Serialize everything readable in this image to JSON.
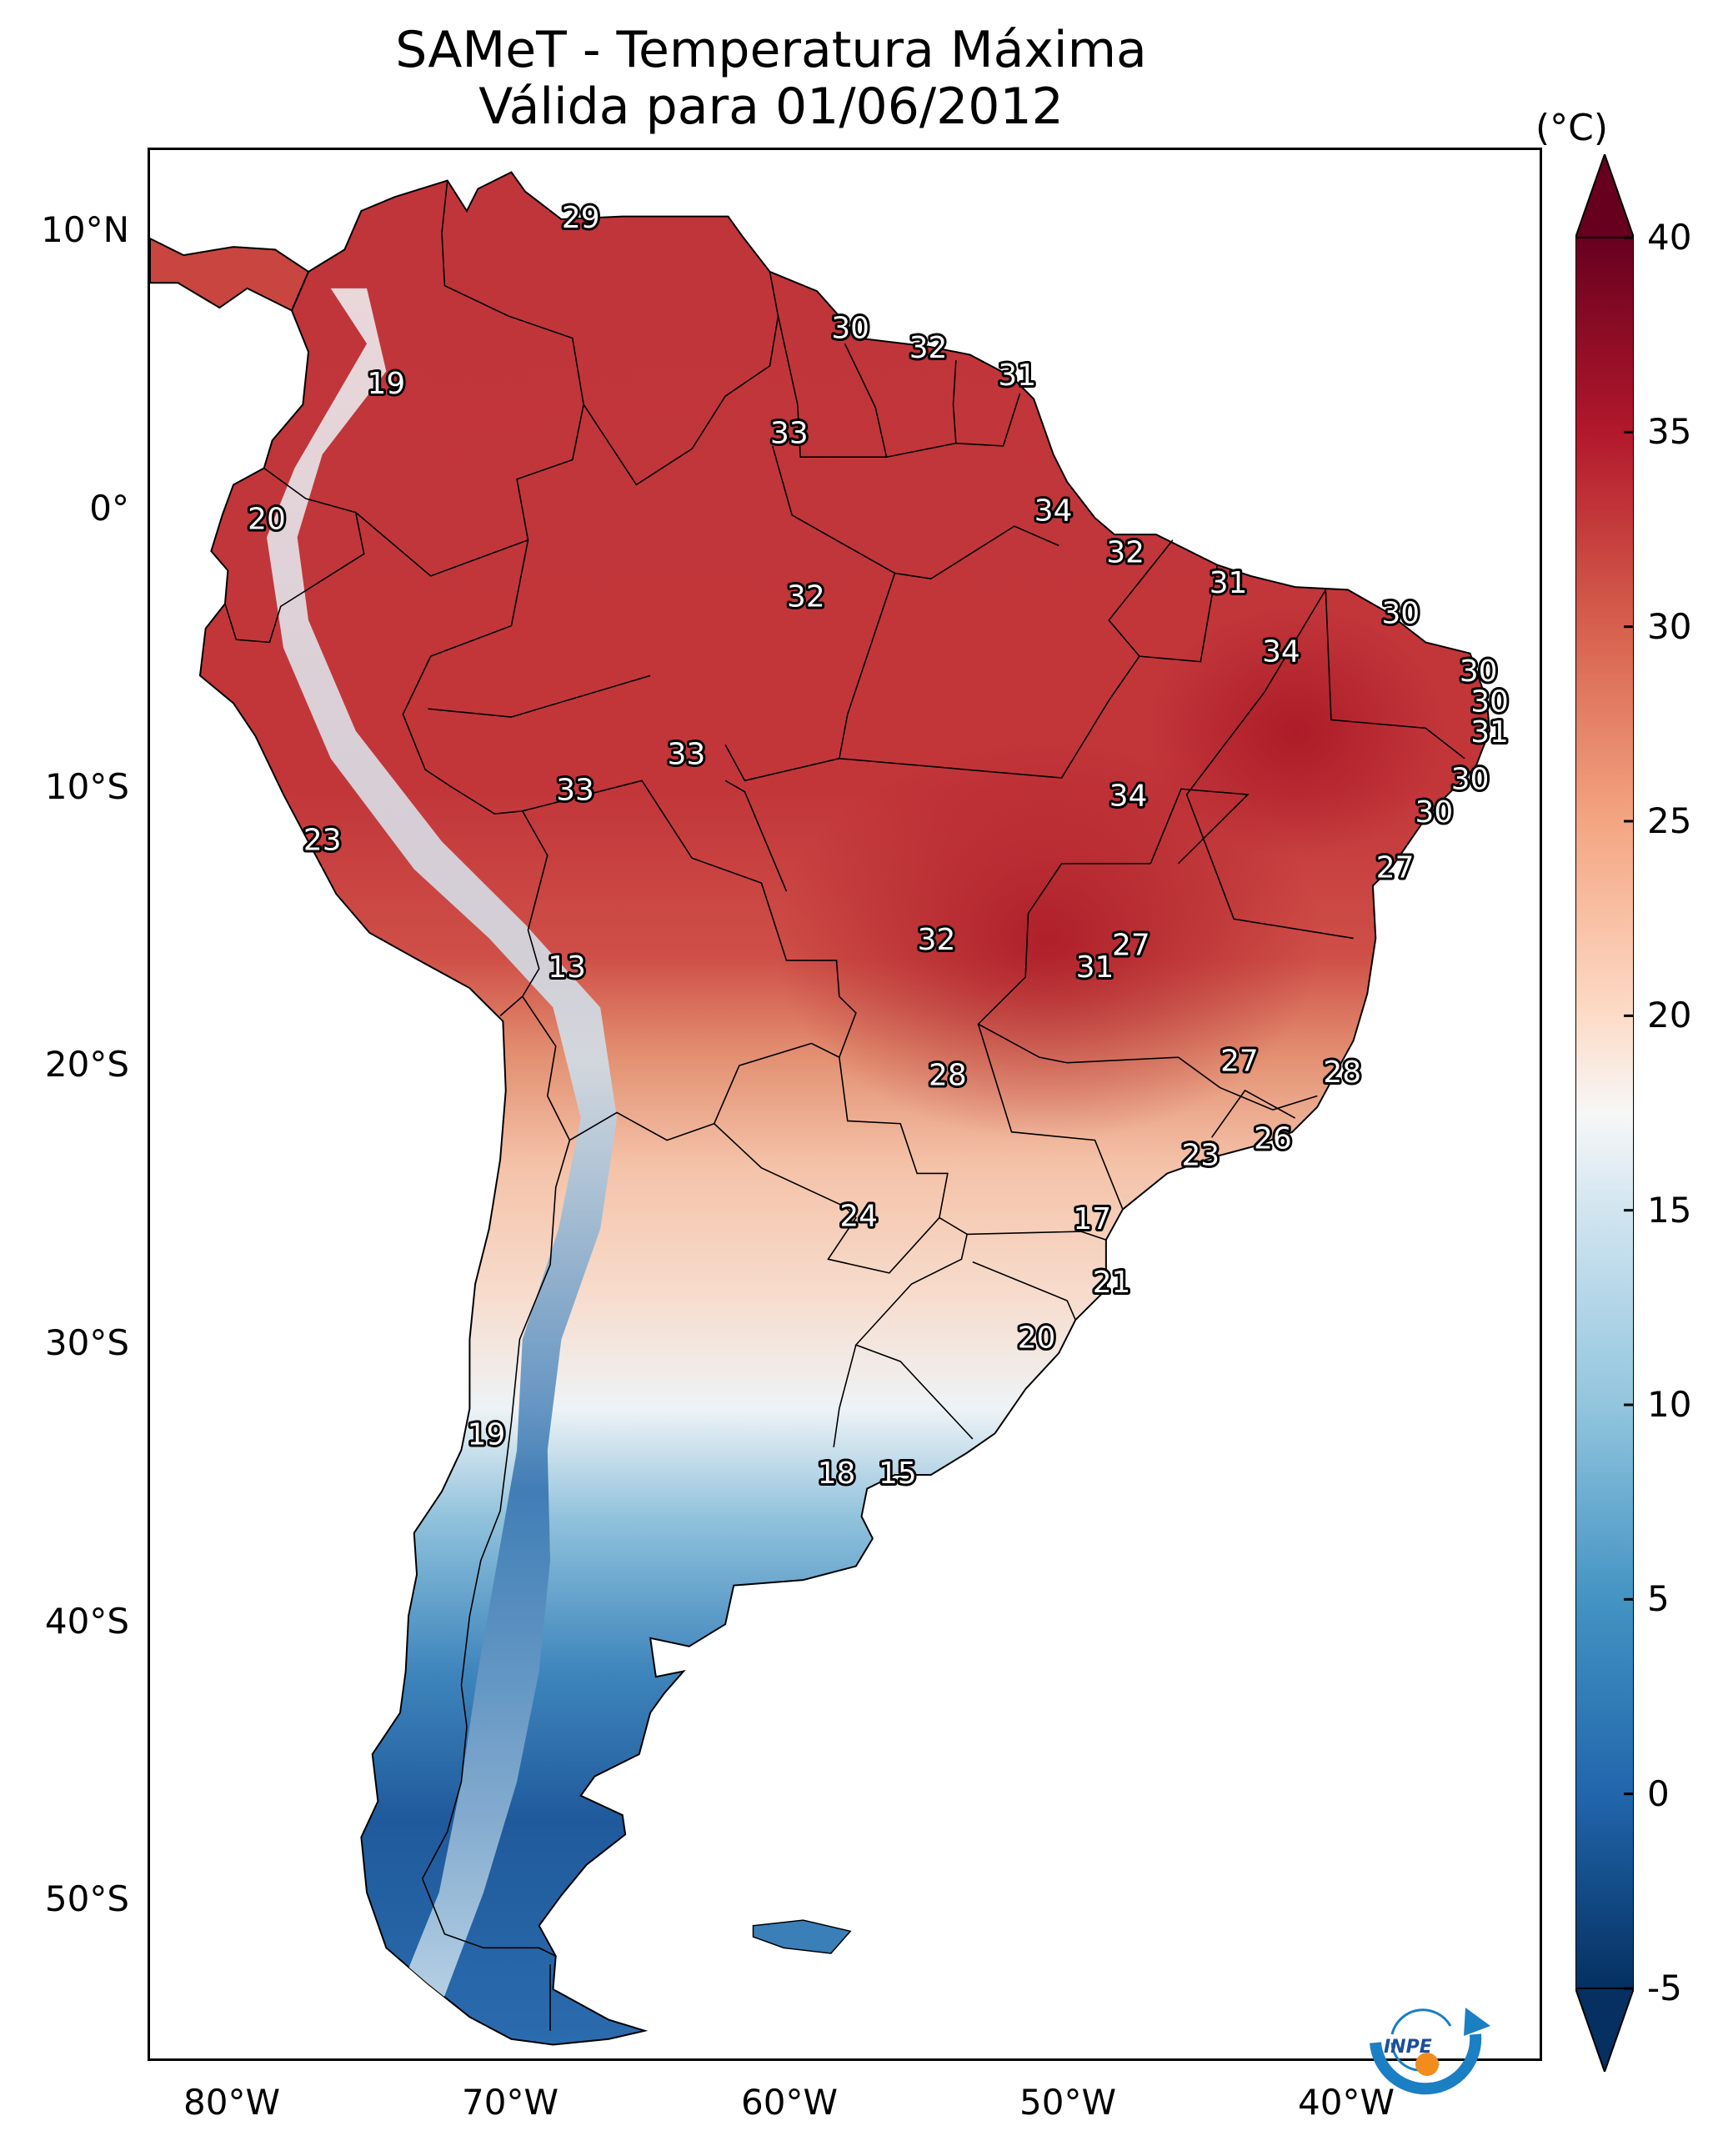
{
  "title": {
    "line1": "SAMeT - Temperatura Máxima",
    "line2": "Válida para 01/06/2012"
  },
  "map": {
    "lat_ticks": [
      "10°N",
      "0°",
      "10°S",
      "20°S",
      "30°S",
      "40°S",
      "50°S"
    ],
    "lon_ticks": [
      "80°W",
      "70°W",
      "60°W",
      "50°W",
      "40°W"
    ],
    "extent": {
      "lon_min": -83,
      "lon_max": -33,
      "lat_min": -56,
      "lat_max": 13
    },
    "temperature_labels": [
      {
        "value": "29",
        "lon": -67.5,
        "lat": 10.5
      },
      {
        "value": "19",
        "lon": -74.5,
        "lat": 4.5
      },
      {
        "value": "30",
        "lon": -57.8,
        "lat": 6.5
      },
      {
        "value": "32",
        "lon": -55.0,
        "lat": 5.8
      },
      {
        "value": "31",
        "lon": -51.8,
        "lat": 4.8
      },
      {
        "value": "33",
        "lon": -60.0,
        "lat": 2.7
      },
      {
        "value": "20",
        "lon": -78.8,
        "lat": -0.4
      },
      {
        "value": "34",
        "lon": -50.5,
        "lat": -0.1
      },
      {
        "value": "32",
        "lon": -47.9,
        "lat": -1.6
      },
      {
        "value": "31",
        "lon": -44.2,
        "lat": -2.7
      },
      {
        "value": "32",
        "lon": -59.4,
        "lat": -3.2
      },
      {
        "value": "30",
        "lon": -38.0,
        "lat": -3.8
      },
      {
        "value": "34",
        "lon": -42.3,
        "lat": -5.2
      },
      {
        "value": "30",
        "lon": -35.2,
        "lat": -5.9
      },
      {
        "value": "30",
        "lon": -34.8,
        "lat": -7.0
      },
      {
        "value": "31",
        "lon": -34.8,
        "lat": -8.1
      },
      {
        "value": "33",
        "lon": -63.7,
        "lat": -8.9
      },
      {
        "value": "33",
        "lon": -67.7,
        "lat": -10.2
      },
      {
        "value": "34",
        "lon": -47.8,
        "lat": -10.4
      },
      {
        "value": "30",
        "lon": -35.5,
        "lat": -9.8
      },
      {
        "value": "30",
        "lon": -36.8,
        "lat": -11.0
      },
      {
        "value": "23",
        "lon": -76.8,
        "lat": -12.0
      },
      {
        "value": "27",
        "lon": -38.2,
        "lat": -13.0
      },
      {
        "value": "13",
        "lon": -68.0,
        "lat": -16.6
      },
      {
        "value": "32",
        "lon": -54.7,
        "lat": -15.6
      },
      {
        "value": "27",
        "lon": -47.7,
        "lat": -15.8
      },
      {
        "value": "31",
        "lon": -49.0,
        "lat": -16.6
      },
      {
        "value": "27",
        "lon": -43.8,
        "lat": -20.0
      },
      {
        "value": "28",
        "lon": -54.3,
        "lat": -20.5
      },
      {
        "value": "28",
        "lon": -40.1,
        "lat": -20.4
      },
      {
        "value": "26",
        "lon": -42.6,
        "lat": -22.8
      },
      {
        "value": "23",
        "lon": -45.2,
        "lat": -23.4
      },
      {
        "value": "24",
        "lon": -57.5,
        "lat": -25.6
      },
      {
        "value": "17",
        "lon": -49.1,
        "lat": -25.7
      },
      {
        "value": "21",
        "lon": -48.4,
        "lat": -28.0
      },
      {
        "value": "20",
        "lon": -51.1,
        "lat": -30.0
      },
      {
        "value": "19",
        "lon": -70.9,
        "lat": -33.5
      },
      {
        "value": "18",
        "lon": -58.3,
        "lat": -34.9
      },
      {
        "value": "15",
        "lon": -56.1,
        "lat": -34.9
      }
    ]
  },
  "colorbar": {
    "unit": "(°C)",
    "ticks": [
      "40",
      "35",
      "30",
      "25",
      "20",
      "15",
      "10",
      "5",
      "0",
      "-5"
    ],
    "min": -5,
    "max": 40,
    "extend": "both",
    "colormap": "RdBu_r"
  },
  "logo": {
    "text": "INPE"
  }
}
